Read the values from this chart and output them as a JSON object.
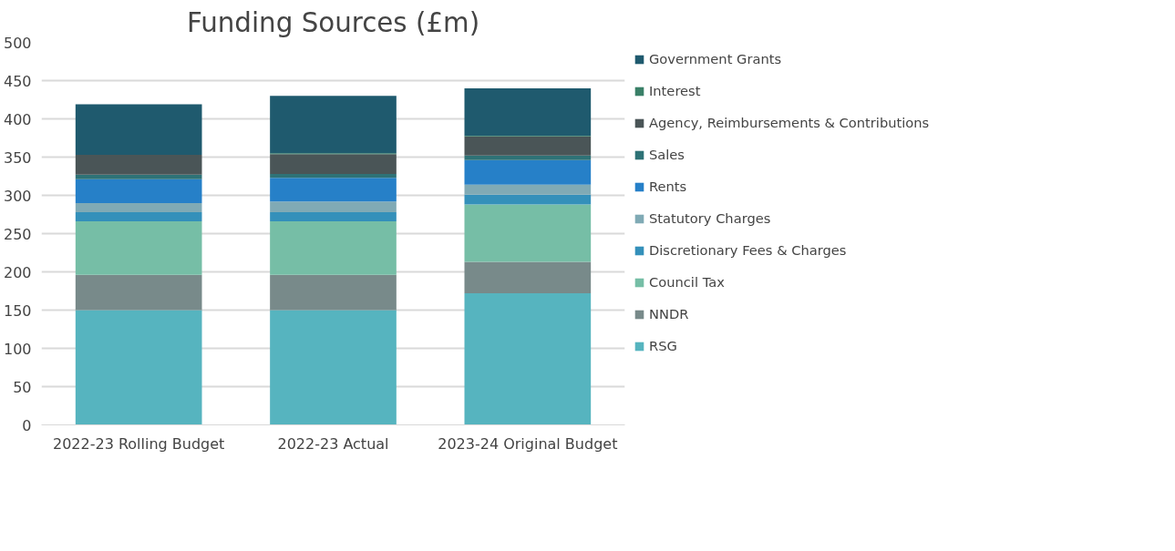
{
  "chart_data": {
    "type": "bar",
    "title": "Funding Sources (£m)",
    "stacked": true,
    "categories": [
      "2022-23 Rolling Budget",
      "2022-23 Actual",
      "2023-24 Original Budget"
    ],
    "ylim": [
      0,
      500
    ],
    "yticks": [
      0,
      50,
      100,
      150,
      200,
      250,
      300,
      350,
      400,
      450,
      500
    ],
    "grid": "y",
    "legend": "right",
    "series": [
      {
        "name": "RSG",
        "color": "#56b4bf",
        "values": [
          150,
          150,
          172
        ]
      },
      {
        "name": "NNDR",
        "color": "#788a8a",
        "values": [
          46,
          46,
          41
        ]
      },
      {
        "name": "Council Tax",
        "color": "#76bea6",
        "values": [
          70,
          70,
          75
        ]
      },
      {
        "name": "Discretionary Fees & Charges",
        "color": "#3490ba",
        "values": [
          12,
          12,
          13
        ]
      },
      {
        "name": "Statutory Charges",
        "color": "#80aab5",
        "values": [
          12,
          14,
          13
        ]
      },
      {
        "name": "Rents",
        "color": "#2680c8",
        "values": [
          31,
          31,
          32
        ]
      },
      {
        "name": "Sales",
        "color": "#2e7276",
        "values": [
          6,
          5,
          6
        ]
      },
      {
        "name": "Agency, Reimbursements & Contributions",
        "color": "#4a5557",
        "values": [
          26,
          26,
          25
        ]
      },
      {
        "name": "Interest",
        "color": "#3a8068",
        "values": [
          null,
          1,
          1
        ]
      },
      {
        "name": "Government Grants",
        "color": "#1f5a6e",
        "values": [
          66,
          75,
          62
        ]
      }
    ]
  }
}
